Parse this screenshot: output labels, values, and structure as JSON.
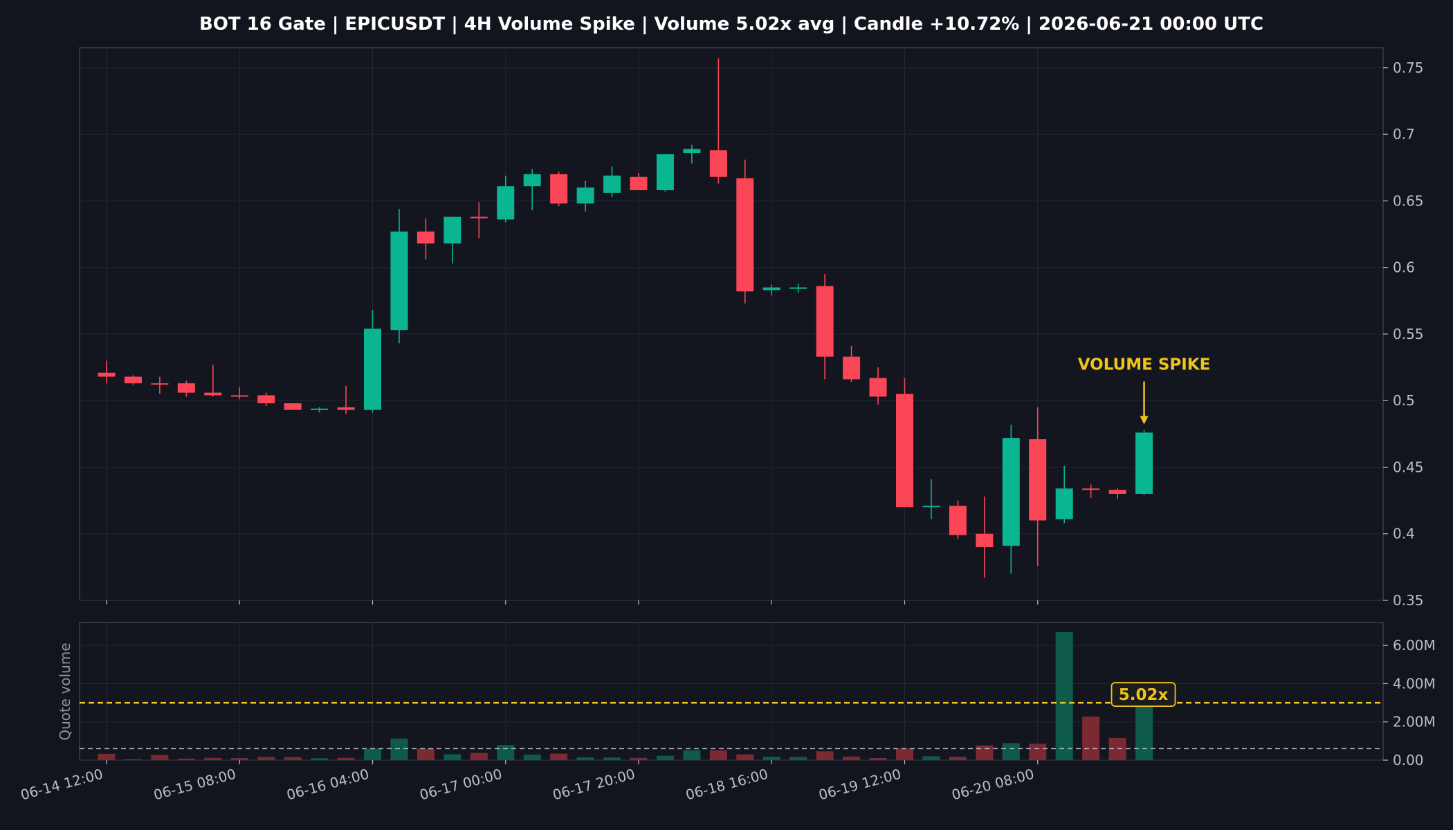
{
  "chart_data": [
    {
      "type": "candlestick",
      "title": "BOT 16 Gate | EPICUSDT | 4H Volume Spike | Volume 5.02x avg | Candle +10.72% | 2026-06-21 00:00 UTC",
      "ylim": [
        0.35,
        0.765
      ],
      "yticks": [
        0.35,
        0.4,
        0.45,
        0.5,
        0.55,
        0.6,
        0.65,
        0.7,
        0.75
      ],
      "ytick_labels": [
        "0.35",
        "0.4",
        "0.45",
        "0.5",
        "0.55",
        "0.6",
        "0.65",
        "0.7",
        "0.75"
      ],
      "x_tick_labels": [
        "06-14 12:00",
        "06-15 08:00",
        "06-16 04:00",
        "06-17 00:00",
        "06-17 20:00",
        "06-18 16:00",
        "06-19 12:00",
        "06-20 08:00"
      ],
      "x_tick_index_step": 5,
      "grid": true,
      "annotation": {
        "text": "VOLUME SPIKE",
        "candle_index": 39
      },
      "colors": {
        "up": "#0ab592",
        "down": "#fa4656",
        "annotation": "#f0c419"
      },
      "candles": [
        {
          "o": 0.521,
          "h": 0.53,
          "l": 0.513,
          "c": 0.518
        },
        {
          "o": 0.518,
          "h": 0.519,
          "l": 0.512,
          "c": 0.513
        },
        {
          "o": 0.513,
          "h": 0.518,
          "l": 0.505,
          "c": 0.512
        },
        {
          "o": 0.513,
          "h": 0.515,
          "l": 0.503,
          "c": 0.506
        },
        {
          "o": 0.506,
          "h": 0.527,
          "l": 0.503,
          "c": 0.504
        },
        {
          "o": 0.504,
          "h": 0.51,
          "l": 0.501,
          "c": 0.503
        },
        {
          "o": 0.504,
          "h": 0.506,
          "l": 0.496,
          "c": 0.498
        },
        {
          "o": 0.498,
          "h": 0.498,
          "l": 0.493,
          "c": 0.493
        },
        {
          "o": 0.493,
          "h": 0.495,
          "l": 0.491,
          "c": 0.494
        },
        {
          "o": 0.495,
          "h": 0.511,
          "l": 0.49,
          "c": 0.493
        },
        {
          "o": 0.493,
          "h": 0.568,
          "l": 0.491,
          "c": 0.554
        },
        {
          "o": 0.553,
          "h": 0.644,
          "l": 0.543,
          "c": 0.627
        },
        {
          "o": 0.627,
          "h": 0.637,
          "l": 0.606,
          "c": 0.618
        },
        {
          "o": 0.618,
          "h": 0.638,
          "l": 0.603,
          "c": 0.638
        },
        {
          "o": 0.638,
          "h": 0.649,
          "l": 0.622,
          "c": 0.637
        },
        {
          "o": 0.636,
          "h": 0.669,
          "l": 0.634,
          "c": 0.661
        },
        {
          "o": 0.661,
          "h": 0.674,
          "l": 0.643,
          "c": 0.67
        },
        {
          "o": 0.67,
          "h": 0.672,
          "l": 0.646,
          "c": 0.648
        },
        {
          "o": 0.648,
          "h": 0.665,
          "l": 0.642,
          "c": 0.66
        },
        {
          "o": 0.656,
          "h": 0.676,
          "l": 0.653,
          "c": 0.669
        },
        {
          "o": 0.668,
          "h": 0.671,
          "l": 0.658,
          "c": 0.658
        },
        {
          "o": 0.658,
          "h": 0.685,
          "l": 0.657,
          "c": 0.685
        },
        {
          "o": 0.686,
          "h": 0.692,
          "l": 0.678,
          "c": 0.689
        },
        {
          "o": 0.688,
          "h": 0.757,
          "l": 0.663,
          "c": 0.668
        },
        {
          "o": 0.667,
          "h": 0.681,
          "l": 0.573,
          "c": 0.582
        },
        {
          "o": 0.583,
          "h": 0.587,
          "l": 0.579,
          "c": 0.585
        },
        {
          "o": 0.584,
          "h": 0.588,
          "l": 0.581,
          "c": 0.585
        },
        {
          "o": 0.586,
          "h": 0.595,
          "l": 0.516,
          "c": 0.533
        },
        {
          "o": 0.533,
          "h": 0.541,
          "l": 0.514,
          "c": 0.516
        },
        {
          "o": 0.517,
          "h": 0.525,
          "l": 0.497,
          "c": 0.503
        },
        {
          "o": 0.505,
          "h": 0.517,
          "l": 0.42,
          "c": 0.42
        },
        {
          "o": 0.421,
          "h": 0.441,
          "l": 0.411,
          "c": 0.421
        },
        {
          "o": 0.421,
          "h": 0.425,
          "l": 0.396,
          "c": 0.399
        },
        {
          "o": 0.4,
          "h": 0.428,
          "l": 0.367,
          "c": 0.39
        },
        {
          "o": 0.391,
          "h": 0.482,
          "l": 0.37,
          "c": 0.472
        },
        {
          "o": 0.471,
          "h": 0.495,
          "l": 0.376,
          "c": 0.41
        },
        {
          "o": 0.411,
          "h": 0.451,
          "l": 0.408,
          "c": 0.434
        },
        {
          "o": 0.434,
          "h": 0.437,
          "l": 0.427,
          "c": 0.433
        },
        {
          "o": 0.433,
          "h": 0.434,
          "l": 0.426,
          "c": 0.43
        },
        {
          "o": 0.43,
          "h": 0.478,
          "l": 0.429,
          "c": 0.476
        }
      ]
    },
    {
      "type": "bar",
      "ylabel": "Quote volume",
      "ylim": [
        0,
        7200000
      ],
      "yticks": [
        0,
        2000000,
        4000000,
        6000000
      ],
      "ytick_labels": [
        "0.00",
        "2.00M",
        "4.00M",
        "6.00M"
      ],
      "average_volume": 600000,
      "spike_threshold": 3000000,
      "badge": "5.02x",
      "grid": true,
      "colors": {
        "up": "#0e5a4b",
        "down": "#7d2932",
        "threshold": "#f0c419",
        "average": "#b9bec9"
      },
      "volumes": [
        330000,
        50000,
        270000,
        80000,
        120000,
        110000,
        170000,
        160000,
        100000,
        120000,
        600000,
        1130000,
        590000,
        310000,
        380000,
        790000,
        290000,
        340000,
        150000,
        140000,
        120000,
        230000,
        520000,
        510000,
        300000,
        180000,
        170000,
        460000,
        190000,
        110000,
        610000,
        200000,
        180000,
        770000,
        890000,
        860000,
        6700000,
        2280000,
        1160000,
        3020000
      ]
    }
  ]
}
